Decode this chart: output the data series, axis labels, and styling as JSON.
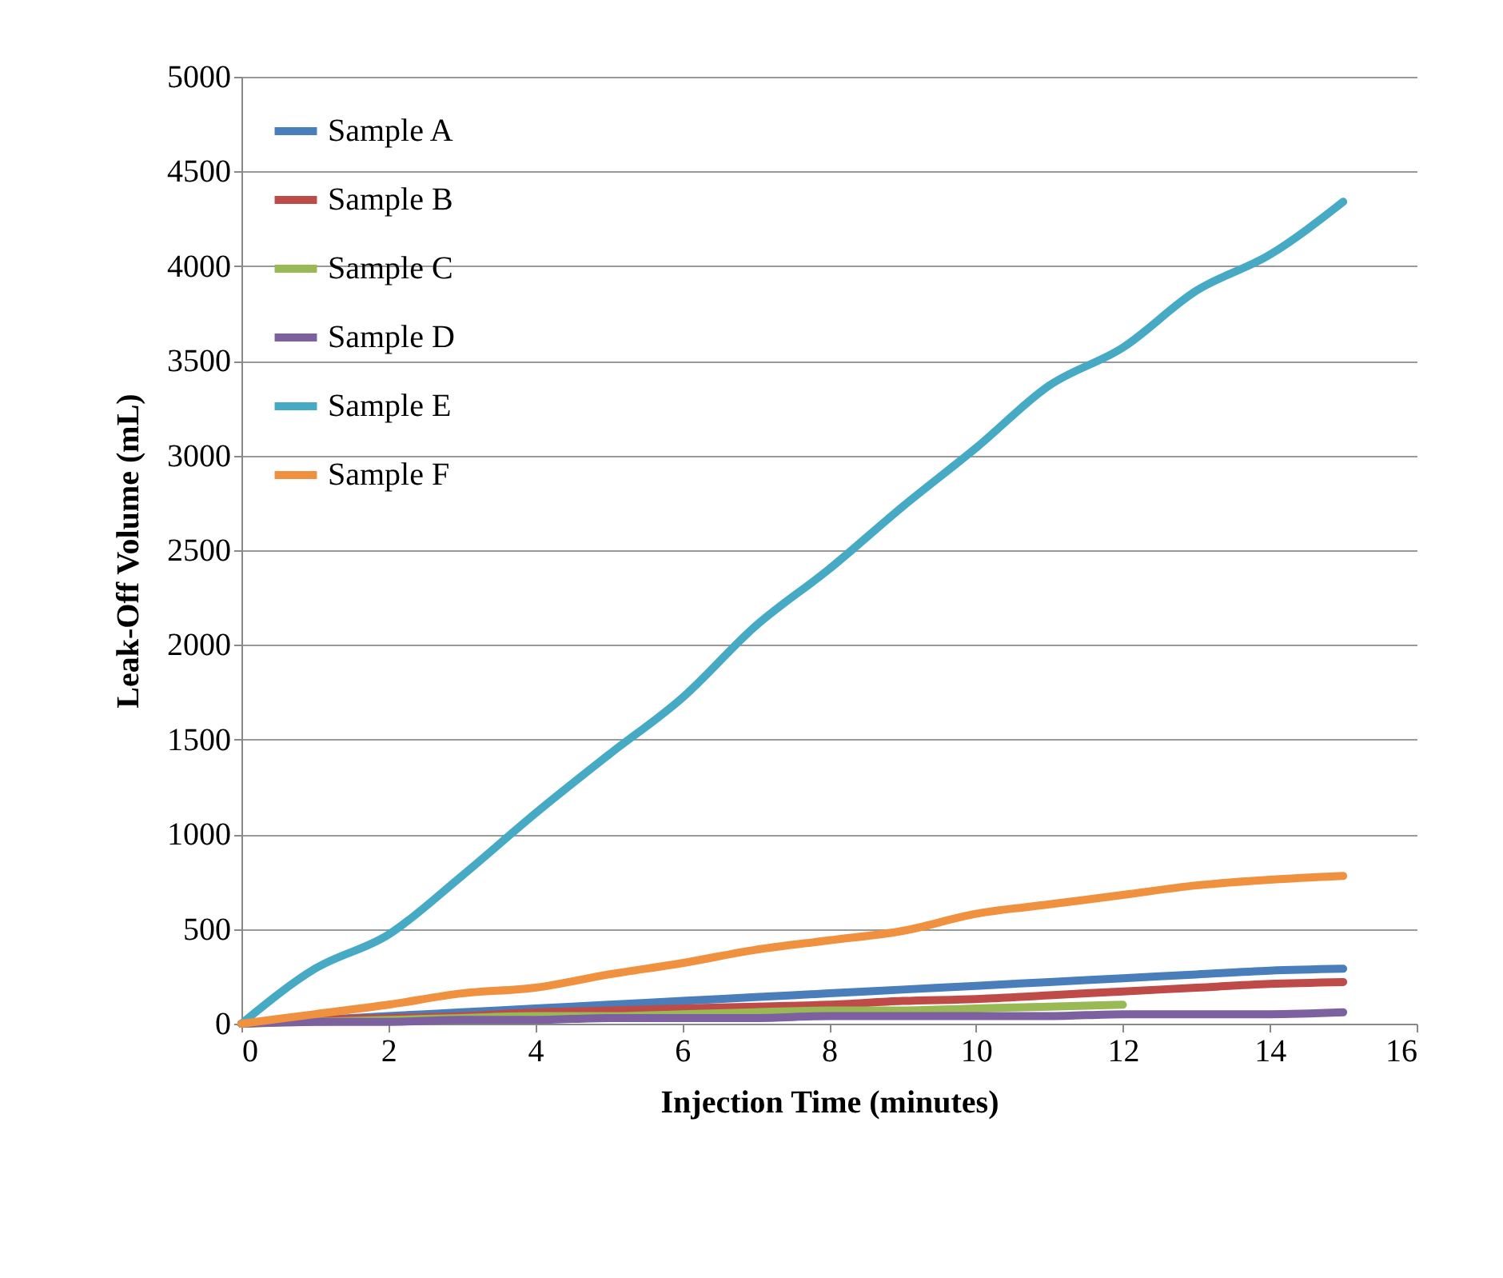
{
  "chart_data": {
    "type": "line",
    "xlabel": "Injection Time (minutes)",
    "ylabel": "Leak-Off Volume (mL)",
    "x": [
      0,
      1,
      2,
      3,
      4,
      5,
      6,
      7,
      8,
      9,
      10,
      11,
      12,
      13,
      14,
      15
    ],
    "series": [
      {
        "name": "Sample A",
        "color": "#4a7ebb",
        "values": [
          0,
          20,
          40,
          60,
          80,
          100,
          120,
          140,
          160,
          180,
          200,
          220,
          240,
          260,
          280,
          290
        ]
      },
      {
        "name": "Sample B",
        "color": "#be4b48",
        "values": [
          0,
          20,
          30,
          40,
          60,
          70,
          80,
          90,
          100,
          120,
          130,
          150,
          170,
          190,
          210,
          220
        ]
      },
      {
        "name": "Sample C",
        "color": "#98b954",
        "values": [
          0,
          10,
          20,
          30,
          40,
          40,
          50,
          60,
          70,
          70,
          80,
          90,
          100,
          null,
          null,
          null
        ]
      },
      {
        "name": "Sample D",
        "color": "#7d60a0",
        "values": [
          0,
          10,
          10,
          20,
          20,
          30,
          30,
          30,
          40,
          40,
          40,
          40,
          50,
          50,
          50,
          60
        ]
      },
      {
        "name": "Sample E",
        "color": "#46aac5",
        "values": [
          0,
          290,
          470,
          780,
          1110,
          1420,
          1720,
          2100,
          2400,
          2730,
          3040,
          3370,
          3570,
          3870,
          4060,
          4340
        ]
      },
      {
        "name": "Sample F",
        "color": "#f0913f",
        "values": [
          0,
          50,
          100,
          160,
          190,
          260,
          320,
          390,
          440,
          490,
          580,
          630,
          680,
          730,
          760,
          780
        ]
      }
    ],
    "xlim": [
      0,
      16
    ],
    "xticks": [
      0,
      2,
      4,
      6,
      8,
      10,
      12,
      14,
      16
    ],
    "ylim": [
      0,
      5000
    ],
    "yticks": [
      0,
      500,
      1000,
      1500,
      2000,
      2500,
      3000,
      3500,
      4000,
      4500,
      5000
    ],
    "grid": "y",
    "legend": "top left",
    "marker": "none",
    "line_style": "solid"
  }
}
